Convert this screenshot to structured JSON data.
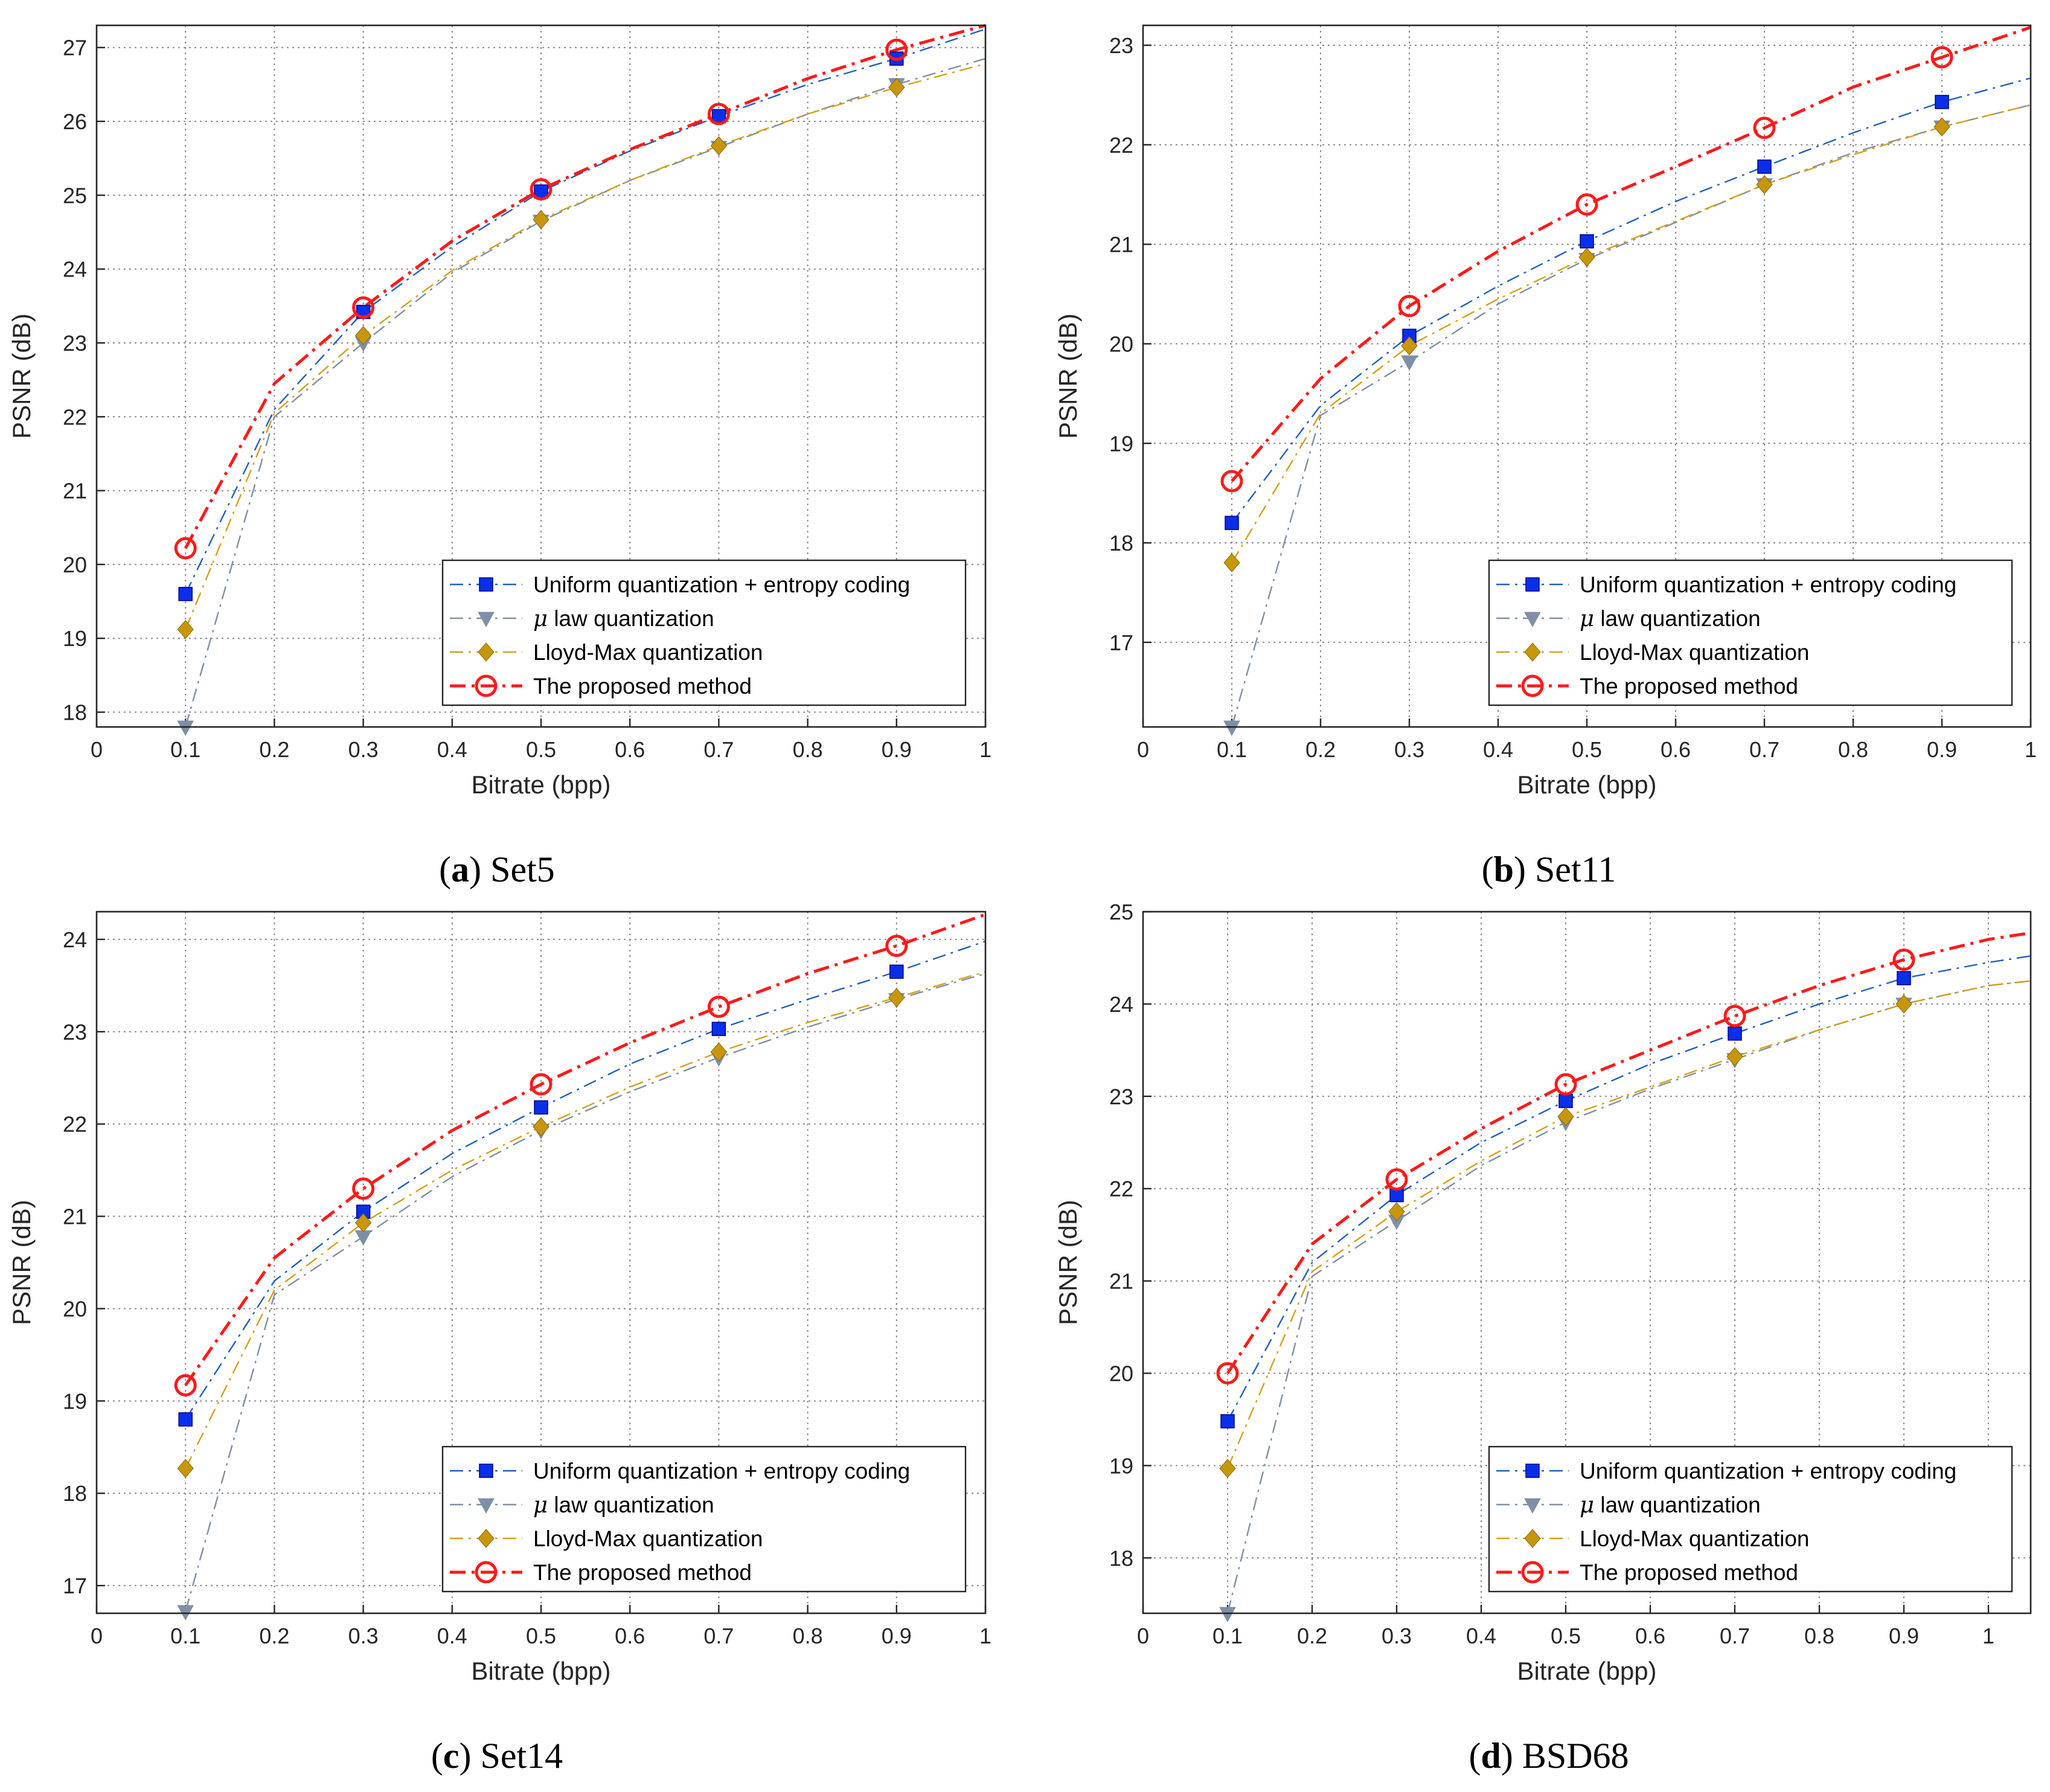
{
  "legend": {
    "entries": [
      {
        "name": "Uniform quantization + entropy coding",
        "color": "#1f5fbf",
        "marker": "square",
        "marker_color": "#0a2fe8",
        "dash": "dashdot-thin"
      },
      {
        "mu_symbol": "μ",
        "name": " law quantization",
        "color": "#7f8fa6",
        "marker": "triangle-down",
        "marker_color": "#7f8fa6",
        "dash": "dashdot-thin"
      },
      {
        "name": "Lloyd-Max quantization",
        "color": "#d4a017",
        "marker": "diamond",
        "marker_color": "#c8960c",
        "dash": "dashdot-thin"
      },
      {
        "name": "The proposed method",
        "color": "#ff1a1a",
        "marker": "circle",
        "marker_color": "#ff1a1a",
        "dash": "dashdot-thick"
      }
    ]
  },
  "chart_data": [
    {
      "type": "line",
      "caption_letter": "a",
      "caption_paren_open": "(",
      "caption_paren_close": ")",
      "caption_text": " Set5",
      "xlabel": "Bitrate (bpp)",
      "ylabel": "PSNR (dB)",
      "xlim": [
        0,
        1
      ],
      "ylim": [
        17.8,
        27.3
      ],
      "xticks": [
        "0",
        "0.1",
        "0.2",
        "0.3",
        "0.4",
        "0.5",
        "0.6",
        "0.7",
        "0.8",
        "0.9",
        "1"
      ],
      "yticks": [
        "18",
        "19",
        "20",
        "21",
        "22",
        "23",
        "24",
        "25",
        "26",
        "27"
      ],
      "x": [
        0.1,
        0.2,
        0.3,
        0.4,
        0.5,
        0.6,
        0.7,
        0.8,
        0.9,
        1.0
      ],
      "marker_x": [
        0.1,
        0.3,
        0.5,
        0.7,
        0.9
      ],
      "series": [
        {
          "name": "Uniform quantization + entropy coding",
          "values": [
            19.6,
            22.1,
            23.42,
            24.3,
            25.05,
            25.6,
            26.07,
            26.5,
            26.85,
            27.25
          ]
        },
        {
          "name": "μ law quantization",
          "values": [
            17.8,
            22.0,
            23.0,
            23.95,
            24.65,
            25.2,
            25.65,
            26.1,
            26.5,
            26.85
          ]
        },
        {
          "name": "Lloyd-Max quantization",
          "values": [
            19.12,
            22.05,
            23.1,
            23.98,
            24.67,
            25.2,
            25.67,
            26.1,
            26.46,
            26.78
          ]
        },
        {
          "name": "The proposed method",
          "values": [
            20.22,
            22.45,
            23.48,
            24.38,
            25.08,
            25.62,
            26.1,
            26.58,
            26.97,
            27.3
          ]
        }
      ]
    },
    {
      "type": "line",
      "caption_letter": "b",
      "caption_paren_open": "(",
      "caption_paren_close": ")",
      "caption_text": " Set11",
      "xlabel": "Bitrate (bpp)",
      "ylabel": "PSNR (dB)",
      "xlim": [
        0,
        1
      ],
      "ylim": [
        16.15,
        23.2
      ],
      "xticks": [
        "0",
        "0.1",
        "0.2",
        "0.3",
        "0.4",
        "0.5",
        "0.6",
        "0.7",
        "0.8",
        "0.9",
        "1"
      ],
      "yticks": [
        "17",
        "18",
        "19",
        "20",
        "21",
        "22",
        "23"
      ],
      "x": [
        0.1,
        0.2,
        0.3,
        0.4,
        0.5,
        0.6,
        0.7,
        0.8,
        0.9,
        1.0
      ],
      "marker_x": [
        0.1,
        0.3,
        0.5,
        0.7,
        0.9
      ],
      "series": [
        {
          "name": "Uniform quantization + entropy coding",
          "values": [
            18.2,
            19.38,
            20.08,
            20.58,
            21.03,
            21.43,
            21.78,
            22.12,
            22.43,
            22.67
          ]
        },
        {
          "name": "μ law quantization",
          "values": [
            16.15,
            19.28,
            19.82,
            20.4,
            20.85,
            21.22,
            21.6,
            21.92,
            22.18,
            22.4
          ]
        },
        {
          "name": "Lloyd-Max quantization",
          "values": [
            17.8,
            19.3,
            19.98,
            20.45,
            20.87,
            21.23,
            21.6,
            21.9,
            22.18,
            22.4
          ]
        },
        {
          "name": "The proposed method",
          "values": [
            18.62,
            19.65,
            20.38,
            20.93,
            21.4,
            21.78,
            22.17,
            22.58,
            22.88,
            23.18
          ]
        }
      ]
    },
    {
      "type": "line",
      "caption_letter": "c",
      "caption_paren_open": "(",
      "caption_paren_close": ")",
      "caption_text": " Set14",
      "xlabel": "Bitrate (bpp)",
      "ylabel": "PSNR (dB)",
      "xlim": [
        0,
        1
      ],
      "ylim": [
        16.7,
        24.3
      ],
      "xticks": [
        "0",
        "0.1",
        "0.2",
        "0.3",
        "0.4",
        "0.5",
        "0.6",
        "0.7",
        "0.8",
        "0.9",
        "1"
      ],
      "yticks": [
        "17",
        "18",
        "19",
        "20",
        "21",
        "22",
        "23",
        "24"
      ],
      "x": [
        0.1,
        0.2,
        0.3,
        0.4,
        0.5,
        0.6,
        0.7,
        0.8,
        0.9,
        1.0
      ],
      "marker_x": [
        0.1,
        0.3,
        0.5,
        0.7,
        0.9
      ],
      "series": [
        {
          "name": "Uniform quantization + entropy coding",
          "values": [
            18.8,
            20.3,
            21.05,
            21.68,
            22.18,
            22.65,
            23.03,
            23.35,
            23.65,
            23.98
          ]
        },
        {
          "name": "μ law quantization",
          "values": [
            16.72,
            20.15,
            20.78,
            21.43,
            21.93,
            22.35,
            22.72,
            23.05,
            23.35,
            23.63
          ]
        },
        {
          "name": "Lloyd-Max quantization",
          "values": [
            18.27,
            20.2,
            20.93,
            21.5,
            21.97,
            22.4,
            22.78,
            23.1,
            23.37,
            23.65
          ]
        },
        {
          "name": "The proposed method",
          "values": [
            19.17,
            20.55,
            21.3,
            21.93,
            22.43,
            22.88,
            23.27,
            23.63,
            23.93,
            24.27
          ]
        }
      ]
    },
    {
      "type": "line",
      "caption_letter": "d",
      "caption_paren_open": "(",
      "caption_paren_close": ")",
      "caption_text": " BSD68",
      "xlabel": "Bitrate (bpp)",
      "ylabel": "PSNR (dB)",
      "xlim": [
        0,
        1.05
      ],
      "ylim": [
        17.4,
        25.0
      ],
      "xticks": [
        "0",
        "0.1",
        "0.2",
        "0.3",
        "0.4",
        "0.5",
        "0.6",
        "0.7",
        "0.8",
        "0.9",
        "1"
      ],
      "yticks": [
        "18",
        "19",
        "20",
        "21",
        "22",
        "23",
        "24",
        "25"
      ],
      "x": [
        0.1,
        0.2,
        0.3,
        0.4,
        0.5,
        0.6,
        0.7,
        0.8,
        0.9,
        1.0,
        1.05
      ],
      "marker_x": [
        0.1,
        0.3,
        0.5,
        0.7,
        0.9
      ],
      "series": [
        {
          "name": "Uniform quantization + entropy coding",
          "values": [
            19.48,
            21.2,
            21.93,
            22.5,
            22.95,
            23.35,
            23.68,
            24.0,
            24.28,
            24.45,
            24.52
          ]
        },
        {
          "name": "μ law quantization",
          "values": [
            17.4,
            21.05,
            21.65,
            22.25,
            22.72,
            23.08,
            23.4,
            23.72,
            24.0,
            24.2,
            24.25
          ]
        },
        {
          "name": "Lloyd-Max quantization",
          "values": [
            18.97,
            21.1,
            21.75,
            22.3,
            22.78,
            23.1,
            23.43,
            23.72,
            24.0,
            24.2,
            24.25
          ]
        },
        {
          "name": "The proposed method",
          "values": [
            20.0,
            21.4,
            22.1,
            22.65,
            23.13,
            23.5,
            23.87,
            24.2,
            24.48,
            24.7,
            24.77
          ]
        }
      ]
    }
  ]
}
